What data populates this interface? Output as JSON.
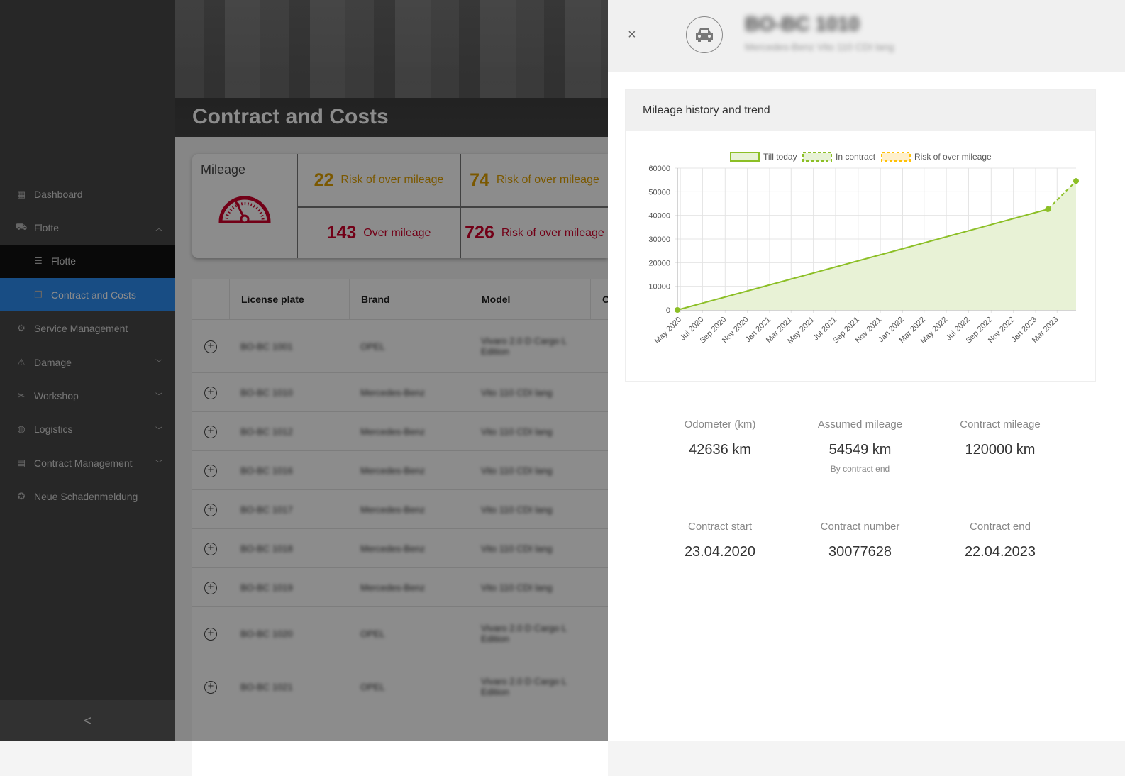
{
  "sidebar": {
    "items": [
      {
        "label": "Dashboard",
        "icon": "dashboard-icon"
      },
      {
        "label": "Flotte",
        "icon": "car-icon",
        "expanded": true
      },
      {
        "label": "Flotte",
        "icon": "list-icon",
        "sub": true
      },
      {
        "label": "Contract and Costs",
        "icon": "document-icon",
        "sub": true,
        "active": true
      },
      {
        "label": "Service Management",
        "icon": "service-icon"
      },
      {
        "label": "Damage",
        "icon": "damage-icon",
        "chevron": true
      },
      {
        "label": "Workshop",
        "icon": "tools-icon",
        "chevron": true
      },
      {
        "label": "Logistics",
        "icon": "globe-icon",
        "chevron": true
      },
      {
        "label": "Contract Management",
        "icon": "contract-icon",
        "chevron": true
      },
      {
        "label": "Neue Schadenmeldung",
        "icon": "badge-icon"
      }
    ],
    "collapse": "<"
  },
  "page": {
    "title": "Contract and Costs"
  },
  "mileage": {
    "title": "Mileage",
    "cells": [
      {
        "num": "22",
        "label": "Risk of over mileage",
        "color": "#e0a000"
      },
      {
        "num": "74",
        "label": "Risk of over mileage",
        "color": "#e0a000"
      },
      {
        "num": "143",
        "label": "Over mileage",
        "color": "#d0002a"
      },
      {
        "num": "726",
        "label": "Risk of over mileage",
        "color": "#d0002a"
      }
    ]
  },
  "table": {
    "headers": [
      "License plate",
      "Brand",
      "Model",
      "O"
    ],
    "rows": [
      [
        "BO-BC 1001",
        "OPEL",
        "Vivaro 2.0 D Cargo L Edition"
      ],
      [
        "BO-BC 1010",
        "Mercedes-Benz",
        "Vito 110 CDI lang"
      ],
      [
        "BO-BC 1012",
        "Mercedes-Benz",
        "Vito 110 CDI lang"
      ],
      [
        "BO-BC 1016",
        "Mercedes-Benz",
        "Vito 110 CDI lang"
      ],
      [
        "BO-BC 1017",
        "Mercedes-Benz",
        "Vito 110 CDI lang"
      ],
      [
        "BO-BC 1018",
        "Mercedes-Benz",
        "Vito 110 CDI lang"
      ],
      [
        "BO-BC 1019",
        "Mercedes-Benz",
        "Vito 110 CDI lang"
      ],
      [
        "BO-BC 1020",
        "OPEL",
        "Vivaro 2.0 D Cargo L Edition"
      ],
      [
        "BO-BC 1021",
        "OPEL",
        "Vivaro 2.0 D Cargo L Edition"
      ]
    ]
  },
  "panel": {
    "title": "BO-BC 1010",
    "subtitle": "Mercedes-Benz Vito 110 CDI lang",
    "close": "×",
    "chart_title": "Mileage history and trend",
    "stats": [
      {
        "label": "Odometer (km)",
        "value": "42636 km"
      },
      {
        "label": "Assumed mileage",
        "value": "54549 km",
        "sub": "By contract end"
      },
      {
        "label": "Contract mileage",
        "value": "120000 km"
      },
      {
        "label": "Contract start",
        "value": "23.04.2020"
      },
      {
        "label": "Contract number",
        "value": "30077628"
      },
      {
        "label": "Contract end",
        "value": "22.04.2023"
      }
    ]
  },
  "chart_data": {
    "type": "line",
    "title": "Mileage history and trend",
    "legend": [
      "Till today",
      "In contract",
      "Risk of over mileage"
    ],
    "legend_position": "top",
    "colors": {
      "line": "#8cbf26",
      "fill": "#e8f2d6",
      "risk": "#ffc107"
    },
    "ylim": [
      0,
      60000
    ],
    "yticks": [
      0,
      10000,
      20000,
      30000,
      40000,
      50000,
      60000
    ],
    "xlim": [
      "2020-04-23",
      "2023-04-22"
    ],
    "xticks": [
      "May 2020",
      "Jul 2020",
      "Sep 2020",
      "Nov 2020",
      "Jan 2021",
      "Mar 2021",
      "May 2021",
      "Jul 2021",
      "Sep 2021",
      "Nov 2021",
      "Jan 2022",
      "Mar 2022",
      "May 2022",
      "Jul 2022",
      "Sep 2022",
      "Nov 2022",
      "Jan 2023",
      "Mar 2023"
    ],
    "grid": true,
    "series": [
      {
        "name": "Till today",
        "points": [
          [
            "2020-04-23",
            0
          ],
          [
            "2023-02-04",
            42636
          ]
        ],
        "style": "solid"
      },
      {
        "name": "In contract",
        "points": [
          [
            "2023-02-04",
            42636
          ],
          [
            "2023-04-22",
            54549
          ]
        ],
        "style": "dashed"
      }
    ]
  }
}
